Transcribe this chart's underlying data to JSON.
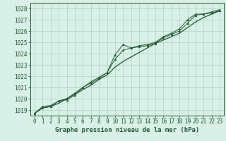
{
  "title": "Graphe pression niveau de la mer (hPa)",
  "bg_color": "#d8f0e8",
  "plot_bg_color": "#d8f0e8",
  "grid_color": "#b0d0c0",
  "line_color": "#1a5c2a",
  "marker_color": "#1a5c2a",
  "xlim": [
    -0.5,
    23.5
  ],
  "ylim": [
    1018.5,
    1028.5
  ],
  "yticks": [
    1019,
    1020,
    1021,
    1022,
    1023,
    1024,
    1025,
    1026,
    1027,
    1028
  ],
  "xticks": [
    0,
    1,
    2,
    3,
    4,
    5,
    6,
    7,
    8,
    9,
    10,
    11,
    12,
    13,
    14,
    15,
    16,
    17,
    18,
    19,
    20,
    21,
    22,
    23
  ],
  "series1_x": [
    0,
    1,
    2,
    3,
    4,
    5,
    6,
    7,
    8,
    9,
    10,
    11,
    12,
    13,
    14,
    15,
    16,
    17,
    18,
    19,
    20,
    21,
    22,
    23
  ],
  "series1_y": [
    1018.7,
    1019.3,
    1019.4,
    1019.8,
    1020.0,
    1020.5,
    1021.0,
    1021.5,
    1021.9,
    1022.3,
    1023.9,
    1024.8,
    1024.5,
    1024.7,
    1024.8,
    1025.0,
    1025.5,
    1025.8,
    1026.2,
    1027.0,
    1027.5,
    1027.5,
    1027.7,
    1027.9
  ],
  "series2_x": [
    0,
    1,
    2,
    3,
    4,
    5,
    6,
    7,
    8,
    9,
    10,
    11,
    12,
    13,
    14,
    15,
    16,
    17,
    18,
    19,
    20,
    21,
    22,
    23
  ],
  "series2_y": [
    1018.7,
    1019.2,
    1019.3,
    1019.8,
    1019.9,
    1020.3,
    1021.0,
    1021.4,
    1021.8,
    1022.3,
    1023.5,
    1024.3,
    1024.5,
    1024.6,
    1024.7,
    1024.9,
    1025.4,
    1025.7,
    1026.0,
    1026.7,
    1027.4,
    1027.5,
    1027.6,
    1027.8
  ],
  "series3_x": [
    0,
    1,
    2,
    3,
    4,
    5,
    6,
    7,
    8,
    9,
    10,
    11,
    12,
    13,
    14,
    15,
    16,
    17,
    18,
    19,
    20,
    21,
    22,
    23
  ],
  "series3_y": [
    1018.7,
    1019.2,
    1019.3,
    1019.6,
    1020.0,
    1020.4,
    1020.8,
    1021.2,
    1021.7,
    1022.1,
    1022.8,
    1023.3,
    1023.7,
    1024.1,
    1024.5,
    1024.9,
    1025.2,
    1025.5,
    1025.8,
    1026.3,
    1026.8,
    1027.2,
    1027.5,
    1027.8
  ],
  "title_bg_color": "#d8f0e8",
  "title_text_color": "#1a5c2a",
  "tick_label_color": "#1a5c2a",
  "tick_fontsize": 5.5,
  "label_fontsize": 6.5
}
